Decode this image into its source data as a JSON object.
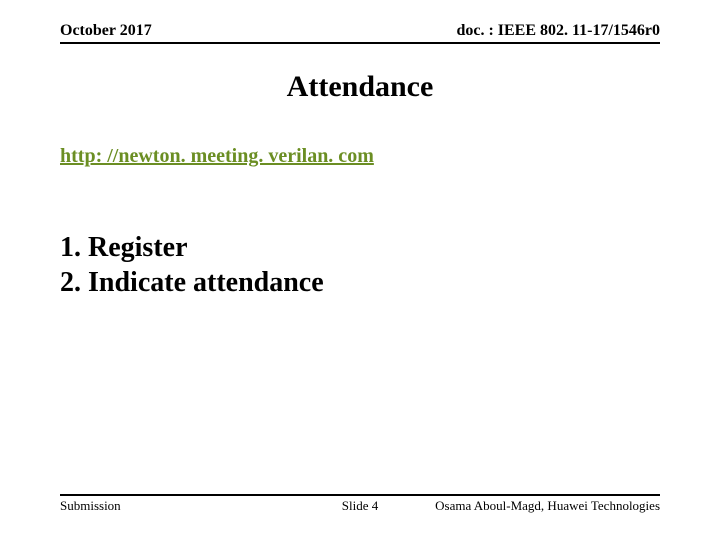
{
  "header": {
    "left": "October 2017",
    "right": "doc. : IEEE 802. 11-17/1546r0"
  },
  "title": "Attendance",
  "link": {
    "text": "http: //newton. meeting. verilan. com",
    "color": "#6b8e23"
  },
  "steps": [
    "1. Register",
    "2. Indicate attendance"
  ],
  "footer": {
    "left": "Submission",
    "center": "Slide 4",
    "right": "Osama Aboul-Magd, Huawei Technologies"
  },
  "styles": {
    "background": "#ffffff",
    "text_color": "#000000",
    "rule_color": "#000000",
    "font_family": "Times New Roman",
    "title_fontsize": 30,
    "header_fontsize": 16,
    "link_fontsize": 20,
    "steps_fontsize": 28,
    "footer_fontsize": 13
  }
}
